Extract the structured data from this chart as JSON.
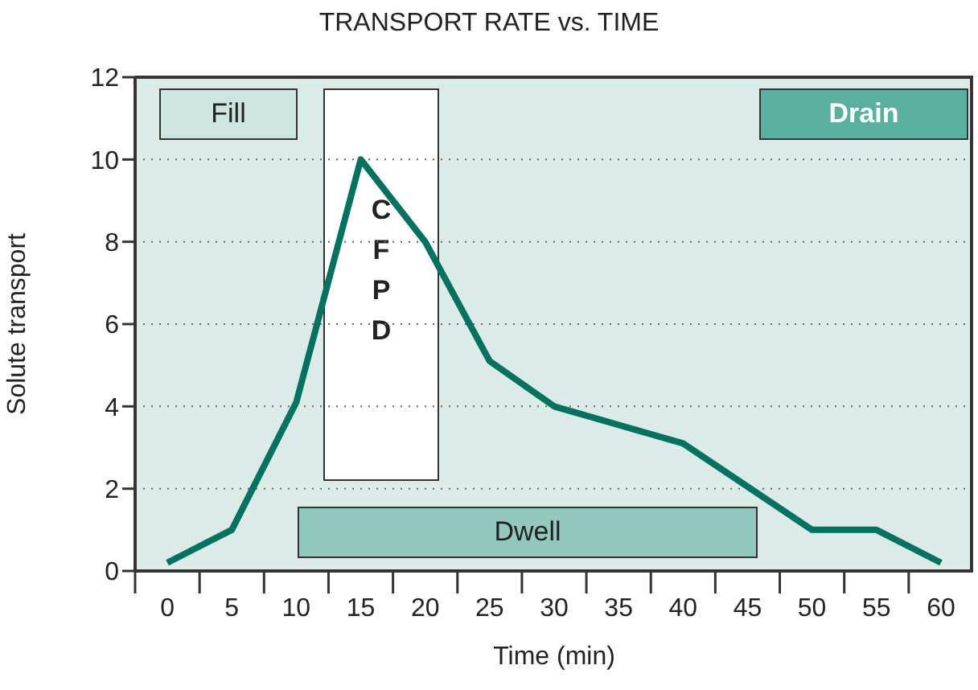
{
  "chart_data": {
    "type": "line",
    "title": "TRANSPORT RATE vs. TIME",
    "xlabel": "Time (min)",
    "ylabel": "Solute transport",
    "x": [
      0,
      5,
      10,
      15,
      20,
      25,
      30,
      40,
      50,
      55,
      60
    ],
    "series": [
      {
        "color": "#00725f",
        "values": [
          0.2,
          1,
          4.1,
          10,
          8,
          5.1,
          4,
          3.1,
          1,
          1,
          0.2
        ]
      }
    ],
    "xlim": [
      -2.5,
      62.5
    ],
    "xticks": [
      {
        "value": -2.5,
        "label": null
      },
      0,
      {
        "value": 2.5,
        "label": null
      },
      5,
      {
        "value": 7.5,
        "label": null
      },
      10,
      {
        "value": 12.5,
        "label": null
      },
      15,
      {
        "value": 17.5,
        "label": null
      },
      20,
      {
        "value": 22.5,
        "label": null
      },
      25,
      {
        "value": 27.5,
        "label": null
      },
      30,
      {
        "value": 32.5,
        "label": null
      },
      35,
      {
        "value": 37.5,
        "label": null
      },
      40,
      {
        "value": 42.5,
        "label": null
      },
      45,
      {
        "value": 47.5,
        "label": null
      },
      50,
      {
        "value": 52.5,
        "label": null
      },
      55,
      {
        "value": 57.5,
        "label": null
      },
      60
    ],
    "ylim": [
      0,
      12
    ],
    "yticks": [
      0,
      2,
      4,
      6,
      8,
      10,
      12
    ],
    "grid": "y",
    "marker": "none",
    "line_style": "solid",
    "legend": false,
    "annotations": [
      "Fill",
      "CFPD",
      "Drain",
      "Dwell"
    ]
  }
}
